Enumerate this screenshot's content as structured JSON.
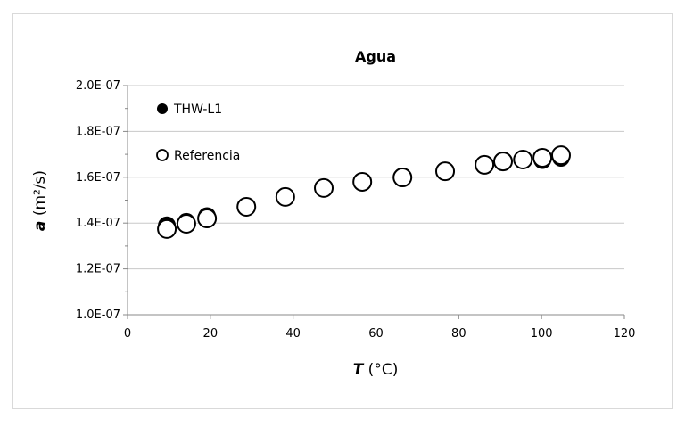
{
  "chart_data": {
    "type": "scatter",
    "title": "Agua",
    "xlabel_italic": "T",
    "xlabel_rest": " (°C)",
    "ylabel_italic": "a",
    "ylabel_rest": " (m²/s)",
    "xlim": [
      0,
      120
    ],
    "ylim": [
      1e-07,
      2e-07
    ],
    "xticks": [
      "0",
      "20",
      "40",
      "60",
      "80",
      "100",
      "120"
    ],
    "yticks": [
      "1.0E-07",
      "1.2E-07",
      "1.4E-07",
      "1.6E-07",
      "1.8E-07",
      "2.0E-07"
    ],
    "grid": "horizontal",
    "legend": "top-left",
    "series": [
      {
        "name": "THW-L1",
        "marker": "filled-circle",
        "color": "#000000",
        "x": [
          9.5,
          14.2,
          19.2,
          28.7,
          38.1,
          47.4,
          56.7,
          66.4,
          76.7,
          86.2,
          90.7,
          95.5,
          100.2,
          104.7
        ],
        "y": [
          1.39e-07,
          1.405e-07,
          1.43e-07,
          1.47e-07,
          1.514e-07,
          1.553e-07,
          1.58e-07,
          1.599e-07,
          1.626e-07,
          1.654e-07,
          1.669e-07,
          1.677e-07,
          1.675e-07,
          1.685e-07
        ]
      },
      {
        "name": "Referencia",
        "marker": "open-circle",
        "color": "#000000",
        "x": [
          9.5,
          14.2,
          19.2,
          28.7,
          38.1,
          47.4,
          56.7,
          66.4,
          76.7,
          86.2,
          90.7,
          95.5,
          100.2,
          104.7
        ],
        "y": [
          1.374e-07,
          1.397e-07,
          1.42e-07,
          1.471e-07,
          1.514e-07,
          1.553e-07,
          1.58e-07,
          1.599e-07,
          1.626e-07,
          1.654e-07,
          1.669e-07,
          1.677e-07,
          1.685e-07,
          1.696e-07
        ]
      }
    ]
  }
}
